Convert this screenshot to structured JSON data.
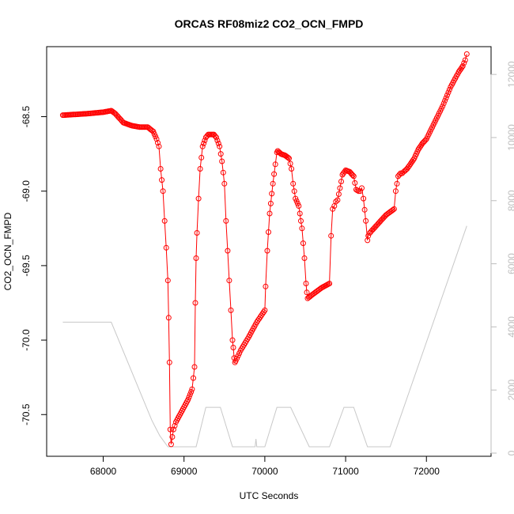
{
  "chart_data": {
    "type": "scatter",
    "title": "ORCAS RF08miz2 CO2_OCN_FMPD",
    "xlabel": "UTC Seconds",
    "ylabel": "CO2_OCN_FMPD",
    "xlim": [
      67300,
      72800
    ],
    "ylim": [
      -70.78,
      -68.03
    ],
    "y2lim": [
      -100,
      12880
    ],
    "x_ticks": [
      68000,
      69000,
      70000,
      71000,
      72000
    ],
    "y_ticks": [
      -68.5,
      -69.0,
      -69.5,
      -70.0,
      -70.5
    ],
    "y_tick_labels": [
      "-68.5",
      "-69.0",
      "-69.5",
      "-70.0",
      "-70.5"
    ],
    "y2_ticks": [
      0,
      2000,
      4000,
      6000,
      8000,
      10000,
      12000
    ],
    "grid": false,
    "legend": "none",
    "colors": {
      "primary": "#ff0000",
      "secondary": "#c8c8c8",
      "axis": "#000000",
      "secondary_axis": "#bdbdbd"
    },
    "series": [
      {
        "marker": "open-circle",
        "color": "#ff0000",
        "axis": "left",
        "x": [
          67500,
          67800,
          68000,
          68100,
          68150,
          68250,
          68350,
          68450,
          68550,
          68620,
          68660,
          68690,
          68710,
          68740,
          68760,
          68780,
          68800,
          68810,
          68820,
          68830,
          68840,
          68870,
          68900,
          68950,
          69000,
          69050,
          69100,
          69130,
          69140,
          69150,
          69160,
          69180,
          69200,
          69230,
          69270,
          69300,
          69330,
          69370,
          69400,
          69440,
          69470,
          69500,
          69520,
          69540,
          69560,
          69580,
          69600,
          69610,
          69620,
          69630,
          69640,
          69700,
          69800,
          69900,
          70000,
          70010,
          70030,
          70060,
          70100,
          70130,
          70150,
          70160,
          70200,
          70250,
          70300,
          70330,
          70350,
          70380,
          70420,
          70460,
          70490,
          70510,
          70520,
          70530,
          70600,
          70700,
          70800,
          70820,
          70840,
          70860,
          70880,
          70900,
          70930,
          70960,
          71000,
          71050,
          71100,
          71130,
          71160,
          71180,
          71200,
          71220,
          71250,
          71270,
          71280,
          71300,
          71400,
          71500,
          71600,
          71620,
          71650,
          71680,
          71700,
          71720,
          71760,
          71800,
          71850,
          71900,
          71950,
          72000,
          72100,
          72200,
          72300,
          72400,
          72450,
          72480,
          72500
        ],
        "y": [
          -68.49,
          -68.48,
          -68.47,
          -68.46,
          -68.48,
          -68.54,
          -68.56,
          -68.57,
          -68.57,
          -68.6,
          -68.65,
          -68.7,
          -68.85,
          -69.0,
          -69.2,
          -69.38,
          -69.6,
          -69.85,
          -70.15,
          -70.6,
          -70.7,
          -70.6,
          -70.55,
          -70.5,
          -70.45,
          -70.4,
          -70.33,
          -70.18,
          -69.75,
          -69.45,
          -69.28,
          -69.05,
          -68.85,
          -68.7,
          -68.64,
          -68.62,
          -68.62,
          -68.62,
          -68.64,
          -68.7,
          -68.8,
          -68.95,
          -69.2,
          -69.4,
          -69.6,
          -69.8,
          -70.0,
          -70.05,
          -70.12,
          -70.15,
          -70.14,
          -70.07,
          -69.98,
          -69.88,
          -69.8,
          -69.64,
          -69.4,
          -69.15,
          -68.95,
          -68.82,
          -68.74,
          -68.73,
          -68.75,
          -68.76,
          -68.78,
          -68.85,
          -68.95,
          -69.05,
          -69.1,
          -69.25,
          -69.45,
          -69.62,
          -69.68,
          -69.72,
          -69.69,
          -69.65,
          -69.62,
          -69.3,
          -69.12,
          -69.1,
          -69.07,
          -69.06,
          -68.98,
          -68.89,
          -68.86,
          -68.87,
          -68.9,
          -68.99,
          -69.0,
          -69.0,
          -68.98,
          -69.05,
          -69.2,
          -69.33,
          -69.3,
          -69.28,
          -69.22,
          -69.16,
          -69.12,
          -69.0,
          -68.9,
          -68.88,
          -68.88,
          -68.87,
          -68.85,
          -68.82,
          -68.78,
          -68.72,
          -68.68,
          -68.65,
          -68.54,
          -68.43,
          -68.3,
          -68.2,
          -68.16,
          -68.12,
          -68.08
        ]
      },
      {
        "color": "#c8c8c8",
        "axis": "right",
        "x": [
          67500,
          68100,
          68600,
          68650,
          68700,
          68800,
          68860,
          69050,
          69150,
          69270,
          69450,
          69600,
          69880,
          69890,
          69900,
          69920,
          70000,
          70150,
          70320,
          70550,
          70800,
          70980,
          71100,
          71270,
          71350,
          71550,
          72500
        ],
        "y": [
          4150,
          4150,
          1050,
          800,
          550,
          200,
          200,
          200,
          200,
          1450,
          1450,
          200,
          200,
          450,
          200,
          200,
          200,
          1450,
          1450,
          200,
          200,
          1450,
          1450,
          200,
          200,
          200,
          7200
        ]
      }
    ]
  }
}
